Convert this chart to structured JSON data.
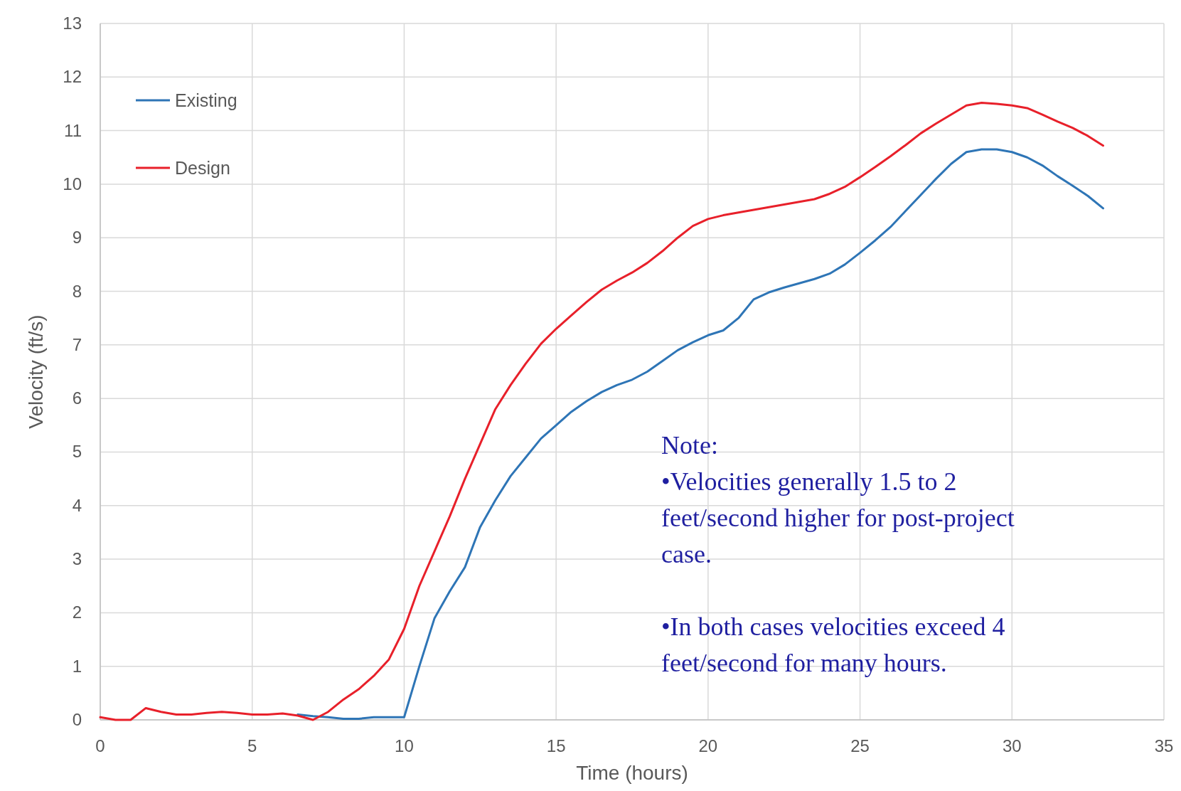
{
  "chart_data": {
    "type": "line",
    "xlabel": "Time (hours)",
    "ylabel": "Velocity (ft/s)",
    "xlim": [
      0,
      35
    ],
    "xticks": [
      0,
      5,
      10,
      15,
      20,
      25,
      30,
      35
    ],
    "ylim": [
      0,
      13
    ],
    "yticks": [
      0,
      1,
      2,
      3,
      4,
      5,
      6,
      7,
      8,
      9,
      10,
      11,
      12,
      13
    ],
    "grid": true,
    "legend": "top left",
    "marker": "none",
    "line_style": "solid",
    "x": [
      0,
      0.5,
      1,
      1.5,
      2,
      2.5,
      3,
      3.5,
      4,
      4.5,
      5,
      5.5,
      6,
      6.5,
      7,
      7.5,
      8,
      8.5,
      9,
      9.5,
      10,
      10.5,
      11,
      11.5,
      12,
      12.5,
      13,
      13.5,
      14,
      14.5,
      15,
      15.5,
      16,
      16.5,
      17,
      17.5,
      18,
      18.5,
      19,
      19.5,
      20,
      20.5,
      21,
      21.5,
      22,
      22.5,
      23,
      23.5,
      24,
      24.5,
      25,
      25.5,
      26,
      26.5,
      27,
      27.5,
      28,
      28.5,
      29,
      29.5,
      30,
      30.5,
      31,
      31.5,
      32,
      32.5,
      33
    ],
    "series": [
      {
        "name": "Existing",
        "color": "#2e75b6",
        "values": [
          null,
          null,
          null,
          null,
          null,
          null,
          null,
          null,
          null,
          null,
          null,
          null,
          null,
          0.1,
          0.07,
          0.05,
          0.02,
          0.02,
          0.05,
          0.05,
          0.05,
          1.0,
          1.9,
          2.4,
          2.85,
          3.6,
          4.1,
          4.55,
          4.9,
          5.25,
          5.5,
          5.75,
          5.95,
          6.12,
          6.25,
          6.35,
          6.5,
          6.7,
          6.9,
          7.05,
          7.18,
          7.27,
          7.5,
          7.85,
          7.98,
          8.07,
          8.15,
          8.23,
          8.33,
          8.5,
          8.72,
          8.95,
          9.2,
          9.5,
          9.8,
          10.1,
          10.38,
          10.6,
          10.65,
          10.65,
          10.6,
          10.5,
          10.35,
          10.15,
          9.97,
          9.78,
          9.55
        ]
      },
      {
        "name": "Design",
        "color": "#e8202a",
        "values": [
          0.05,
          0,
          0,
          0.22,
          0.15,
          0.1,
          0.1,
          0.13,
          0.15,
          0.13,
          0.1,
          0.1,
          0.12,
          0.08,
          0,
          0.15,
          0.38,
          0.57,
          0.82,
          1.13,
          1.7,
          2.5,
          3.15,
          3.8,
          4.5,
          5.15,
          5.8,
          6.25,
          6.65,
          7.02,
          7.3,
          7.55,
          7.8,
          8.03,
          8.2,
          8.35,
          8.53,
          8.75,
          9.0,
          9.22,
          9.35,
          9.42,
          9.47,
          9.52,
          9.57,
          9.62,
          9.67,
          9.72,
          9.82,
          9.95,
          10.13,
          10.32,
          10.52,
          10.73,
          10.95,
          11.13,
          11.3,
          11.47,
          11.52,
          11.5,
          11.47,
          11.42,
          11.3,
          11.17,
          11.05,
          10.9,
          10.72
        ]
      }
    ],
    "annotations": [
      "Note:",
      "•Velocities generally 1.5 to 2 feet/second higher for post-project case.",
      "•In both cases velocities exceed 4 feet/second for many hours."
    ]
  }
}
